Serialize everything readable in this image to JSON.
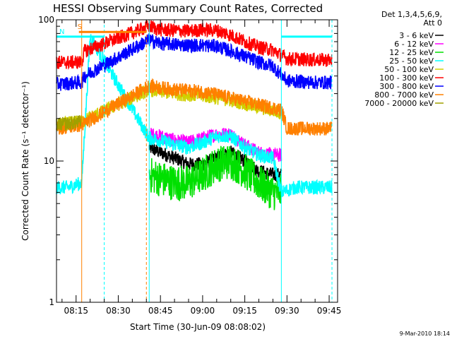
{
  "chart_data": {
    "type": "line",
    "title": "HESSI Observing Summary Count Rates, Corrected",
    "xlabel": "Start Time (30-Jun-09 08:08:02)",
    "ylabel": "Corrected Count Rate (s⁻¹ detector⁻¹)",
    "yscale": "log",
    "xlim": [
      "08:08:02",
      "09:48:00"
    ],
    "ylim": [
      1,
      100
    ],
    "x_ticks": [
      "08:15",
      "08:30",
      "08:45",
      "09:00",
      "09:15",
      "09:30",
      "09:45"
    ],
    "y_ticks": [
      "1",
      "10",
      "100"
    ],
    "legend_header": [
      "Det 1,3,4,5,6,9,",
      "Att 0"
    ],
    "legend_position": "right",
    "series": [
      {
        "name": "3 - 6 keV",
        "color": "#000000",
        "points": [
          [
            "08:41",
            12.5
          ],
          [
            "08:45",
            11.5
          ],
          [
            "08:50",
            10.5
          ],
          [
            "08:55",
            9.5
          ],
          [
            "09:00",
            9.5
          ],
          [
            "09:05",
            10.5
          ],
          [
            "09:10",
            11.5
          ],
          [
            "09:15",
            10
          ],
          [
            "09:20",
            8.5
          ],
          [
            "09:25",
            8
          ],
          [
            "09:28",
            8
          ]
        ]
      },
      {
        "name": "6 - 12 keV",
        "color": "#ff00ff",
        "points": [
          [
            "08:41",
            15.5
          ],
          [
            "08:45",
            15
          ],
          [
            "08:50",
            14
          ],
          [
            "08:55",
            13.5
          ],
          [
            "09:00",
            14.5
          ],
          [
            "09:05",
            15.5
          ],
          [
            "09:10",
            15.5
          ],
          [
            "09:15",
            13
          ],
          [
            "09:20",
            11.5
          ],
          [
            "09:25",
            11
          ],
          [
            "09:28",
            11
          ]
        ]
      },
      {
        "name": "12 - 25 keV",
        "color": "#00e000",
        "points": [
          [
            "08:41",
            8
          ],
          [
            "08:45",
            7.5
          ],
          [
            "08:50",
            7
          ],
          [
            "08:55",
            7
          ],
          [
            "09:00",
            8
          ],
          [
            "09:05",
            9.5
          ],
          [
            "09:10",
            10
          ],
          [
            "09:15",
            8.5
          ],
          [
            "09:20",
            7
          ],
          [
            "09:25",
            6
          ],
          [
            "09:28",
            6
          ]
        ]
      },
      {
        "name": "25 - 50 keV",
        "color": "#00ffff",
        "points": [
          [
            "08:08:02",
            6.5
          ],
          [
            "08:12",
            6.5
          ],
          [
            "08:17",
            7
          ],
          [
            "08:20",
            76
          ],
          [
            "08:41",
            14.5
          ],
          [
            "08:45",
            14
          ],
          [
            "08:50",
            13
          ],
          [
            "08:55",
            12.5
          ],
          [
            "09:00",
            13.5
          ],
          [
            "09:05",
            15
          ],
          [
            "09:10",
            15
          ],
          [
            "09:15",
            12.5
          ],
          [
            "09:20",
            11
          ],
          [
            "09:25",
            10.5
          ],
          [
            "09:28",
            6
          ],
          [
            "09:33",
            6.5
          ],
          [
            "09:40",
            6.5
          ],
          [
            "09:46",
            6.5
          ]
        ]
      },
      {
        "name": "50 - 100 keV",
        "color": "#d0d000",
        "points": [
          [
            "08:08:02",
            18
          ],
          [
            "08:17",
            19
          ],
          [
            "08:41",
            32
          ],
          [
            "08:50",
            30
          ],
          [
            "09:00",
            29
          ],
          [
            "09:10",
            27
          ],
          [
            "09:20",
            24
          ],
          [
            "09:28",
            22
          ]
        ]
      },
      {
        "name": "100 - 300 keV",
        "color": "#ff0000",
        "points": [
          [
            "08:08:02",
            50
          ],
          [
            "08:17",
            50
          ],
          [
            "08:18",
            60
          ],
          [
            "08:41",
            90
          ],
          [
            "08:45",
            85
          ],
          [
            "08:55",
            83
          ],
          [
            "09:00",
            85
          ],
          [
            "09:05",
            84
          ],
          [
            "09:10",
            78
          ],
          [
            "09:15",
            70
          ],
          [
            "09:20",
            64
          ],
          [
            "09:25",
            61
          ],
          [
            "09:30",
            53
          ],
          [
            "09:40",
            52
          ],
          [
            "09:46",
            52
          ]
        ]
      },
      {
        "name": "300 - 800 keV",
        "color": "#0000ff",
        "points": [
          [
            "08:08:02",
            35
          ],
          [
            "08:17",
            36
          ],
          [
            "08:18",
            40
          ],
          [
            "08:41",
            72
          ],
          [
            "08:45",
            68
          ],
          [
            "08:55",
            66
          ],
          [
            "09:00",
            66
          ],
          [
            "09:05",
            65
          ],
          [
            "09:10",
            60
          ],
          [
            "09:15",
            55
          ],
          [
            "09:20",
            50
          ],
          [
            "09:25",
            47
          ],
          [
            "09:30",
            37
          ],
          [
            "09:40",
            36
          ],
          [
            "09:46",
            36
          ]
        ]
      },
      {
        "name": "800 - 7000 keV",
        "color": "#ff8000",
        "points": [
          [
            "08:08:02",
            17
          ],
          [
            "08:17",
            18
          ],
          [
            "08:41",
            34
          ],
          [
            "08:50",
            32
          ],
          [
            "09:00",
            31
          ],
          [
            "09:10",
            28
          ],
          [
            "09:20",
            25
          ],
          [
            "09:28",
            23
          ],
          [
            "09:30",
            17
          ],
          [
            "09:40",
            17
          ],
          [
            "09:46",
            17
          ]
        ]
      },
      {
        "name": "7000 - 20000 keV",
        "color": "#a0a000",
        "points": [
          [
            "08:08:02",
            18
          ],
          [
            "08:17",
            19
          ]
        ]
      }
    ],
    "flags": [
      {
        "label": "S",
        "color": "#ff8000",
        "start": "08:16",
        "end": "08:40",
        "level": 82
      },
      {
        "label": "N",
        "color": "#00ffff",
        "start": "08:08:02",
        "end": "08:25",
        "level": 76
      },
      {
        "label": "",
        "color": "#00ffff",
        "start": "09:28",
        "end": "09:46",
        "level": 76
      }
    ],
    "verticals": [
      {
        "time": "08:17",
        "color": "#ff8000",
        "dashed": false
      },
      {
        "time": "08:25",
        "color": "#00ffff",
        "dashed": true
      },
      {
        "time": "08:40",
        "color": "#ff8000",
        "dashed": true
      },
      {
        "time": "08:41",
        "color": "#00ffff",
        "dashed": false
      },
      {
        "time": "09:28",
        "color": "#00ffff",
        "dashed": false
      },
      {
        "time": "09:46",
        "color": "#00ffff",
        "dashed": true
      }
    ],
    "timestamp": "9-Mar-2010 18:14"
  }
}
